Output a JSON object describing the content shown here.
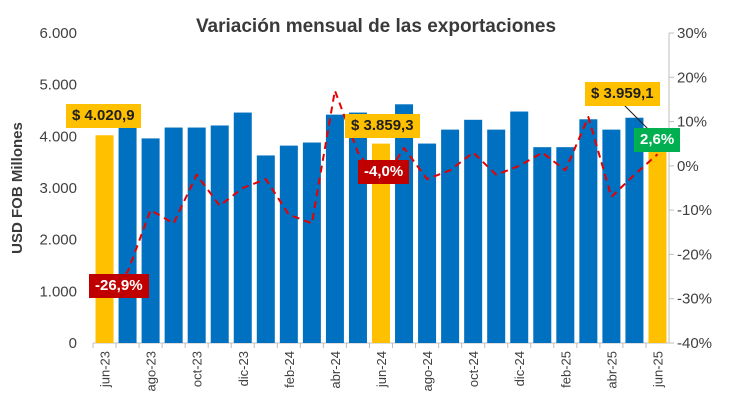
{
  "title": "Variación mensual de las exportaciones",
  "colors": {
    "bar_default": "#0070c0",
    "bar_highlight": "#ffc000",
    "line": "#e60000",
    "callout_positive": "#00b050",
    "callout_negative": "#c00000",
    "callout_value": "#ffc000"
  },
  "chart_data": {
    "type": "bar+line",
    "ylabel": "USD FOB Millones",
    "ylim": [
      0,
      6000
    ],
    "y2lim": [
      -40,
      30
    ],
    "yticks": [
      "0",
      "1.000",
      "2.000",
      "3.000",
      "4.000",
      "5.000",
      "6.000"
    ],
    "y2ticks": [
      "-40%",
      "-30%",
      "-20%",
      "-10%",
      "0%",
      "10%",
      "20%",
      "30%"
    ],
    "categories": [
      "jun-23",
      "jul-23",
      "ago-23",
      "sep-23",
      "oct-23",
      "nov-23",
      "dic-23",
      "ene-24",
      "feb-24",
      "mar-24",
      "abr-24",
      "may-24",
      "jun-24",
      "jul-24",
      "ago-24",
      "sep-24",
      "oct-24",
      "nov-24",
      "dic-24",
      "ene-25",
      "feb-25",
      "mar-25",
      "abr-25",
      "may-25",
      "jun-25"
    ],
    "x_tick_labels": [
      "jun-23",
      "ago-23",
      "oct-23",
      "dic-23",
      "feb-24",
      "abr-24",
      "jun-24",
      "ago-24",
      "oct-24",
      "dic-24",
      "feb-25",
      "abr-25",
      "jun-25"
    ],
    "highlight": [
      "jun-23",
      "jun-24",
      "jun-25"
    ],
    "series": [
      {
        "type": "bar",
        "axis": "left",
        "values": [
          4020.9,
          4230,
          3960,
          4170,
          4170,
          4210,
          4460,
          3630,
          3820,
          3880,
          4420,
          4460,
          3859.3,
          4620,
          3860,
          4130,
          4320,
          4130,
          4480,
          3790,
          3790,
          4330,
          4130,
          4360,
          3959.1
        ]
      },
      {
        "type": "line",
        "axis": "right",
        "style": "dashed",
        "values": [
          -26.9,
          -24.0,
          -10.0,
          -13.0,
          -2.0,
          -9.0,
          -5.0,
          -3.0,
          -11.0,
          -13.0,
          17.0,
          3.0,
          -4.0,
          4.0,
          -3.0,
          -1.0,
          3.0,
          -2.0,
          0.0,
          3.0,
          -1.0,
          11.0,
          -7.0,
          -2.0,
          2.6
        ]
      }
    ],
    "annotations": [
      {
        "category": "jun-23",
        "value_label": "$ 4.020,9",
        "pct_label": "-26,9%"
      },
      {
        "category": "jun-24",
        "value_label": "$ 3.859,3",
        "pct_label": "-4,0%"
      },
      {
        "category": "jun-25",
        "value_label": "$ 3.959,1",
        "pct_label": "2,6%"
      }
    ],
    "grid": false
  }
}
